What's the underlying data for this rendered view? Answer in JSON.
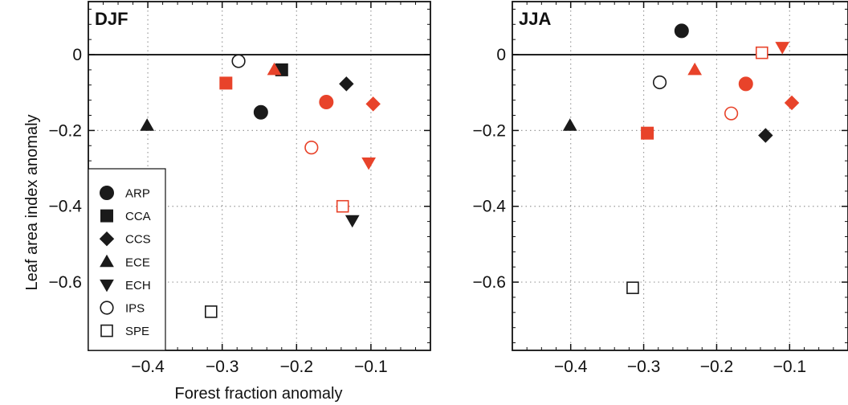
{
  "figure": {
    "xlabel": "Forest fraction anomaly",
    "ylabel": "Leaf area index anomaly"
  },
  "colors": {
    "black": "#1a1a1a",
    "red": "#e8432a",
    "grid": "#9a9a9a"
  },
  "legend": [
    {
      "model": "ARP",
      "marker": "circle",
      "filled": true
    },
    {
      "model": "CCA",
      "marker": "square",
      "filled": true
    },
    {
      "model": "CCS",
      "marker": "diamond",
      "filled": true
    },
    {
      "model": "ECE",
      "marker": "triangle-up",
      "filled": true
    },
    {
      "model": "ECH",
      "marker": "triangle-down",
      "filled": true
    },
    {
      "model": "IPS",
      "marker": "circle",
      "filled": false
    },
    {
      "model": "SPE",
      "marker": "square",
      "filled": false
    }
  ],
  "chart_data": [
    {
      "type": "scatter",
      "title": "DJF",
      "xlim": [
        -0.48,
        -0.02
      ],
      "ylim": [
        -0.78,
        0.14
      ],
      "xticks": [
        -0.4,
        -0.3,
        -0.2,
        -0.1
      ],
      "xtick_labels": [
        "−0.4",
        "−0.3",
        "−0.2",
        "−0.1"
      ],
      "yticks": [
        0,
        -0.2,
        -0.4,
        -0.6
      ],
      "ytick_labels": [
        "0",
        "−0.2",
        "−0.4",
        "−0.6"
      ],
      "grid": true,
      "zero_line": 0,
      "legend": "bottom-left",
      "points": [
        {
          "model": "ARP",
          "color": "black",
          "x": -0.248,
          "y": -0.152
        },
        {
          "model": "ARP",
          "color": "red",
          "x": -0.16,
          "y": -0.125
        },
        {
          "model": "CCA",
          "color": "black",
          "x": -0.22,
          "y": -0.04
        },
        {
          "model": "CCA",
          "color": "red",
          "x": -0.295,
          "y": -0.075
        },
        {
          "model": "CCS",
          "color": "black",
          "x": -0.133,
          "y": -0.077
        },
        {
          "model": "CCS",
          "color": "red",
          "x": -0.097,
          "y": -0.13
        },
        {
          "model": "ECE",
          "color": "black",
          "x": -0.401,
          "y": -0.187
        },
        {
          "model": "ECE",
          "color": "red",
          "x": -0.23,
          "y": -0.04
        },
        {
          "model": "ECH",
          "color": "black",
          "x": -0.125,
          "y": -0.437
        },
        {
          "model": "ECH",
          "color": "red",
          "x": -0.103,
          "y": -0.285
        },
        {
          "model": "IPS",
          "color": "black",
          "x": -0.278,
          "y": -0.017
        },
        {
          "model": "IPS",
          "color": "red",
          "x": -0.18,
          "y": -0.245
        },
        {
          "model": "SPE",
          "color": "black",
          "x": -0.315,
          "y": -0.678
        },
        {
          "model": "SPE",
          "color": "red",
          "x": -0.138,
          "y": -0.4
        }
      ]
    },
    {
      "type": "scatter",
      "title": "JJA",
      "xlim": [
        -0.48,
        -0.02
      ],
      "ylim": [
        -0.78,
        0.14
      ],
      "xticks": [
        -0.4,
        -0.3,
        -0.2,
        -0.1
      ],
      "xtick_labels": [
        "−0.4",
        "−0.3",
        "−0.2",
        "−0.1"
      ],
      "yticks": [
        0,
        -0.2,
        -0.4,
        -0.6
      ],
      "ytick_labels": [
        "0",
        "−0.2",
        "−0.4",
        "−0.6"
      ],
      "grid": true,
      "zero_line": 0,
      "points": [
        {
          "model": "ARP",
          "color": "black",
          "x": -0.248,
          "y": 0.063
        },
        {
          "model": "ARP",
          "color": "red",
          "x": -0.16,
          "y": -0.077
        },
        {
          "model": "CCA",
          "color": "red",
          "x": -0.295,
          "y": -0.207
        },
        {
          "model": "CCS",
          "color": "black",
          "x": -0.133,
          "y": -0.213
        },
        {
          "model": "CCS",
          "color": "red",
          "x": -0.097,
          "y": -0.127
        },
        {
          "model": "ECE",
          "color": "black",
          "x": -0.401,
          "y": -0.187
        },
        {
          "model": "ECE",
          "color": "red",
          "x": -0.23,
          "y": -0.04
        },
        {
          "model": "ECH",
          "color": "red",
          "x": -0.11,
          "y": 0.02
        },
        {
          "model": "IPS",
          "color": "black",
          "x": -0.278,
          "y": -0.073
        },
        {
          "model": "IPS",
          "color": "red",
          "x": -0.18,
          "y": -0.155
        },
        {
          "model": "SPE",
          "color": "black",
          "x": -0.315,
          "y": -0.615
        },
        {
          "model": "SPE",
          "color": "red",
          "x": -0.138,
          "y": 0.005
        }
      ]
    }
  ]
}
